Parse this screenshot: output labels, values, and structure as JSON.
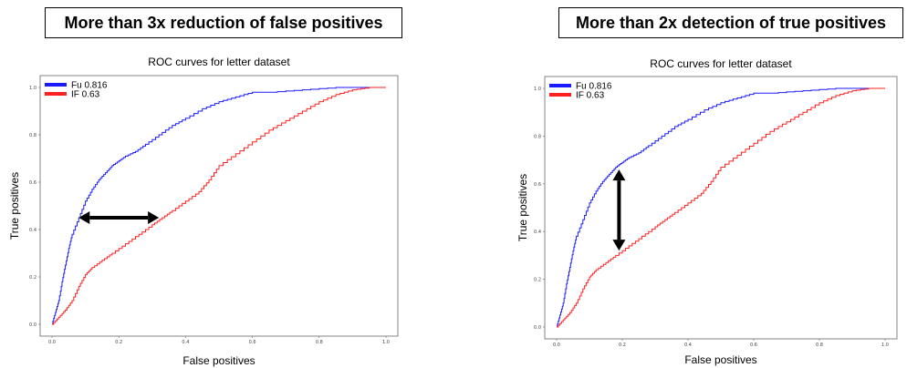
{
  "banners": {
    "left": "More than 3x reduction of false positives",
    "right": "More than 2x detection of true positives"
  },
  "colors": {
    "fu": "#1a1aff",
    "if": "#ff2020",
    "arrow": "#000000"
  },
  "chart_data": [
    {
      "type": "line",
      "title": "ROC curves for letter dataset",
      "xlabel": "False positives",
      "ylabel": "True positives",
      "xlim": [
        0,
        1
      ],
      "ylim": [
        0,
        1
      ],
      "xticks": [
        "0.0",
        "0.2",
        "0.4",
        "0.6",
        "0.8",
        "1.0"
      ],
      "yticks": [
        "0.0",
        "0.2",
        "0.4",
        "0.6",
        "0.8",
        "1.0"
      ],
      "legend_position": "top-left",
      "series": [
        {
          "name": "Fu",
          "label_value": "0.816",
          "x": [
            0,
            0.01,
            0.02,
            0.03,
            0.04,
            0.05,
            0.06,
            0.08,
            0.1,
            0.12,
            0.14,
            0.16,
            0.18,
            0.2,
            0.22,
            0.25,
            0.28,
            0.32,
            0.36,
            0.4,
            0.45,
            0.5,
            0.55,
            0.6,
            0.65,
            0.75,
            0.85,
            0.9,
            1.0
          ],
          "y": [
            0,
            0.05,
            0.1,
            0.18,
            0.25,
            0.32,
            0.38,
            0.45,
            0.52,
            0.57,
            0.61,
            0.64,
            0.67,
            0.69,
            0.71,
            0.73,
            0.76,
            0.8,
            0.84,
            0.87,
            0.91,
            0.94,
            0.96,
            0.98,
            0.98,
            0.99,
            1.0,
            1.0,
            1.0
          ]
        },
        {
          "name": "IF",
          "label_value": "0.63",
          "x": [
            0,
            0.02,
            0.04,
            0.06,
            0.08,
            0.1,
            0.12,
            0.15,
            0.18,
            0.22,
            0.26,
            0.3,
            0.33,
            0.36,
            0.4,
            0.44,
            0.47,
            0.5,
            0.55,
            0.6,
            0.65,
            0.7,
            0.75,
            0.8,
            0.85,
            0.9,
            0.95,
            1.0
          ],
          "y": [
            0,
            0.03,
            0.06,
            0.1,
            0.16,
            0.21,
            0.24,
            0.27,
            0.3,
            0.34,
            0.38,
            0.42,
            0.45,
            0.48,
            0.52,
            0.56,
            0.61,
            0.67,
            0.72,
            0.77,
            0.82,
            0.86,
            0.9,
            0.94,
            0.97,
            0.99,
            1.0,
            1.0
          ]
        }
      ],
      "arrow": {
        "orientation": "horizontal",
        "from": [
          0.08,
          0.45
        ],
        "to": [
          0.32,
          0.45
        ]
      }
    },
    {
      "type": "line",
      "title": "ROC curves for letter dataset",
      "xlabel": "False positives",
      "ylabel": "True positives",
      "xlim": [
        0,
        1
      ],
      "ylim": [
        0,
        1
      ],
      "xticks": [
        "0.0",
        "0.2",
        "0.4",
        "0.6",
        "0.8",
        "1.0"
      ],
      "yticks": [
        "0.0",
        "0.2",
        "0.4",
        "0.6",
        "0.8",
        "1.0"
      ],
      "legend_position": "top-left",
      "series": [
        {
          "name": "Fu",
          "label_value": "0.816",
          "x": [
            0,
            0.01,
            0.02,
            0.03,
            0.04,
            0.05,
            0.06,
            0.08,
            0.1,
            0.12,
            0.14,
            0.16,
            0.18,
            0.2,
            0.22,
            0.25,
            0.28,
            0.32,
            0.36,
            0.4,
            0.45,
            0.5,
            0.55,
            0.6,
            0.65,
            0.75,
            0.85,
            0.9,
            1.0
          ],
          "y": [
            0,
            0.05,
            0.1,
            0.18,
            0.25,
            0.32,
            0.38,
            0.45,
            0.52,
            0.57,
            0.61,
            0.64,
            0.67,
            0.69,
            0.71,
            0.73,
            0.76,
            0.8,
            0.84,
            0.87,
            0.91,
            0.94,
            0.96,
            0.98,
            0.98,
            0.99,
            1.0,
            1.0,
            1.0
          ]
        },
        {
          "name": "IF",
          "label_value": "0.63",
          "x": [
            0,
            0.02,
            0.04,
            0.06,
            0.08,
            0.1,
            0.12,
            0.15,
            0.18,
            0.22,
            0.26,
            0.3,
            0.33,
            0.36,
            0.4,
            0.44,
            0.47,
            0.5,
            0.55,
            0.6,
            0.65,
            0.7,
            0.75,
            0.8,
            0.85,
            0.9,
            0.95,
            1.0
          ],
          "y": [
            0,
            0.03,
            0.06,
            0.1,
            0.16,
            0.21,
            0.24,
            0.27,
            0.3,
            0.34,
            0.38,
            0.42,
            0.45,
            0.48,
            0.52,
            0.56,
            0.61,
            0.67,
            0.72,
            0.77,
            0.82,
            0.86,
            0.9,
            0.94,
            0.97,
            0.99,
            1.0,
            1.0
          ]
        }
      ],
      "arrow": {
        "orientation": "vertical",
        "from": [
          0.19,
          0.66
        ],
        "to": [
          0.19,
          0.32
        ]
      }
    }
  ]
}
